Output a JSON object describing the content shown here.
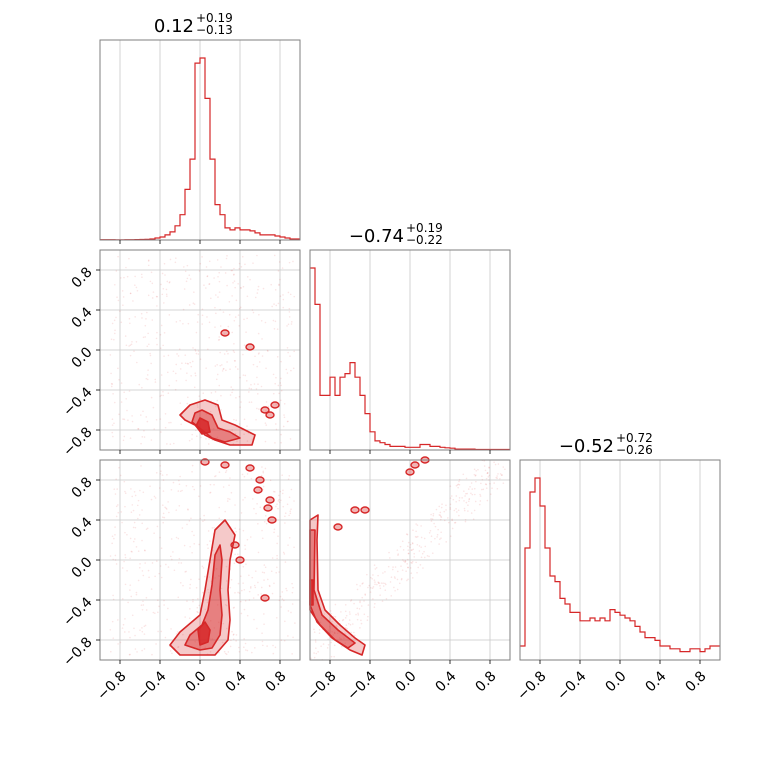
{
  "chart_data": {
    "type": "corner",
    "grid": true,
    "color": "#d62728",
    "tick_values": [
      -0.8,
      -0.4,
      0.0,
      0.4,
      0.8
    ],
    "tick_labels": [
      "−0.8",
      "−0.4",
      "0.0",
      "0.4",
      "0.8"
    ],
    "range": [
      -1.0,
      1.0
    ],
    "parameters": [
      {
        "median": "0.12",
        "plus": "+0.19",
        "minus": "−0.13"
      },
      {
        "median": "−0.74",
        "plus": "+0.19",
        "minus": "−0.22"
      },
      {
        "median": "−0.52",
        "plus": "+0.72",
        "minus": "−0.26"
      }
    ],
    "histograms": [
      {
        "bins": 40,
        "values": [
          0.3,
          0.3,
          0.3,
          0.2,
          0.2,
          0.3,
          0.3,
          0.4,
          0.5,
          0.7,
          1,
          2,
          3,
          5,
          8,
          14,
          25,
          50,
          80,
          175,
          180,
          140,
          80,
          35,
          25,
          12,
          10,
          12,
          10,
          10,
          9,
          7,
          5,
          5,
          5,
          4,
          3,
          2,
          1,
          1
        ]
      },
      {
        "bins": 40,
        "values": [
          100,
          80,
          30,
          30,
          40,
          30,
          40,
          42,
          48,
          40,
          30,
          20,
          10,
          5,
          4,
          3,
          2,
          2,
          2,
          1.5,
          1.5,
          1.5,
          3,
          3,
          2,
          2,
          1.5,
          1.2,
          1,
          0.5,
          0.5,
          0.5,
          0.5,
          0.3,
          0.3,
          0.3,
          0.3,
          0.3,
          0.3,
          0.3
        ]
      },
      {
        "bins": 40,
        "values": [
          5,
          40,
          60,
          65,
          55,
          40,
          30,
          28,
          22,
          20,
          17,
          17,
          14,
          14,
          15,
          14,
          15,
          14,
          18,
          17,
          16,
          15,
          14,
          12,
          10,
          8,
          8,
          7,
          5,
          5,
          4,
          4,
          3,
          3,
          4,
          4,
          3,
          4,
          5,
          5
        ]
      }
    ],
    "pairs": [
      {
        "row": 1,
        "col": 0,
        "x_param": 0,
        "y_param": 1,
        "contours": [
          [
            [
              0.05,
              -0.5
            ],
            [
              0.18,
              -0.55
            ],
            [
              0.22,
              -0.7
            ],
            [
              0.35,
              -0.75
            ],
            [
              0.45,
              -0.8
            ],
            [
              0.55,
              -0.85
            ],
            [
              0.52,
              -0.95
            ],
            [
              0.3,
              -0.95
            ],
            [
              0.15,
              -0.9
            ],
            [
              0.05,
              -0.85
            ],
            [
              -0.05,
              -0.75
            ],
            [
              -0.15,
              -0.7
            ],
            [
              -0.2,
              -0.65
            ],
            [
              -0.1,
              -0.55
            ]
          ],
          [
            [
              0.02,
              -0.6
            ],
            [
              0.12,
              -0.65
            ],
            [
              0.18,
              -0.78
            ],
            [
              0.3,
              -0.82
            ],
            [
              0.4,
              -0.88
            ],
            [
              0.25,
              -0.92
            ],
            [
              0.12,
              -0.88
            ],
            [
              0.02,
              -0.8
            ],
            [
              -0.08,
              -0.72
            ],
            [
              -0.05,
              -0.63
            ]
          ],
          [
            [
              0.0,
              -0.68
            ],
            [
              0.08,
              -0.72
            ],
            [
              0.1,
              -0.82
            ],
            [
              0.02,
              -0.84
            ],
            [
              -0.04,
              -0.76
            ]
          ]
        ],
        "blobs": [
          [
            0.65,
            -0.6
          ],
          [
            0.75,
            -0.55
          ],
          [
            0.7,
            -0.65
          ],
          [
            0.25,
            0.17
          ],
          [
            0.5,
            0.03
          ]
        ],
        "scatter_count": 500
      },
      {
        "row": 2,
        "col": 0,
        "x_param": 0,
        "y_param": 2,
        "contours": [
          [
            [
              -0.05,
              -0.95
            ],
            [
              0.15,
              -0.95
            ],
            [
              0.28,
              -0.8
            ],
            [
              0.3,
              -0.6
            ],
            [
              0.28,
              -0.3
            ],
            [
              0.3,
              0.0
            ],
            [
              0.35,
              0.25
            ],
            [
              0.25,
              0.4
            ],
            [
              0.15,
              0.3
            ],
            [
              0.1,
              0.0
            ],
            [
              0.05,
              -0.3
            ],
            [
              0.0,
              -0.55
            ],
            [
              -0.2,
              -0.72
            ],
            [
              -0.3,
              -0.85
            ],
            [
              -0.2,
              -0.95
            ]
          ],
          [
            [
              0.0,
              -0.9
            ],
            [
              0.12,
              -0.88
            ],
            [
              0.2,
              -0.75
            ],
            [
              0.22,
              -0.55
            ],
            [
              0.2,
              -0.3
            ],
            [
              0.22,
              0.0
            ],
            [
              0.2,
              0.15
            ],
            [
              0.15,
              0.05
            ],
            [
              0.12,
              -0.25
            ],
            [
              0.08,
              -0.5
            ],
            [
              0.02,
              -0.65
            ],
            [
              -0.1,
              -0.75
            ],
            [
              -0.15,
              -0.85
            ]
          ],
          [
            [
              0.0,
              -0.85
            ],
            [
              0.08,
              -0.82
            ],
            [
              0.1,
              -0.7
            ],
            [
              0.05,
              -0.62
            ],
            [
              -0.02,
              -0.7
            ]
          ]
        ],
        "blobs": [
          [
            0.5,
            0.92
          ],
          [
            0.6,
            0.8
          ],
          [
            0.7,
            0.6
          ],
          [
            0.72,
            0.4
          ],
          [
            0.65,
            -0.38
          ],
          [
            0.4,
            0.0
          ],
          [
            0.35,
            0.15
          ],
          [
            0.25,
            0.95
          ],
          [
            0.05,
            0.98
          ],
          [
            0.68,
            0.52
          ],
          [
            0.58,
            0.7
          ]
        ],
        "scatter_count": 500
      },
      {
        "row": 2,
        "col": 1,
        "x_param": 1,
        "y_param": 2,
        "contours": [
          [
            [
              -1.0,
              0.4
            ],
            [
              -0.92,
              0.45
            ],
            [
              -0.93,
              0.2
            ],
            [
              -0.92,
              -0.3
            ],
            [
              -0.85,
              -0.5
            ],
            [
              -0.7,
              -0.65
            ],
            [
              -0.55,
              -0.78
            ],
            [
              -0.45,
              -0.85
            ],
            [
              -0.48,
              -0.95
            ],
            [
              -0.6,
              -0.9
            ],
            [
              -0.75,
              -0.8
            ],
            [
              -0.9,
              -0.65
            ],
            [
              -1.0,
              -0.5
            ]
          ],
          [
            [
              -1.0,
              0.3
            ],
            [
              -0.95,
              0.3
            ],
            [
              -0.96,
              -0.3
            ],
            [
              -0.88,
              -0.55
            ],
            [
              -0.72,
              -0.7
            ],
            [
              -0.55,
              -0.83
            ],
            [
              -0.62,
              -0.88
            ],
            [
              -0.78,
              -0.78
            ],
            [
              -0.93,
              -0.62
            ],
            [
              -1.0,
              -0.45
            ]
          ],
          [
            [
              -1.0,
              -0.2
            ],
            [
              -0.97,
              -0.2
            ],
            [
              -0.97,
              -0.45
            ],
            [
              -1.0,
              -0.45
            ]
          ]
        ],
        "blobs": [
          [
            0.05,
            0.95
          ],
          [
            0.15,
            1.0
          ],
          [
            0.0,
            0.88
          ],
          [
            -0.45,
            0.5
          ],
          [
            -0.55,
            0.5
          ],
          [
            -0.72,
            0.33
          ]
        ],
        "scatter_count": 400
      }
    ]
  }
}
